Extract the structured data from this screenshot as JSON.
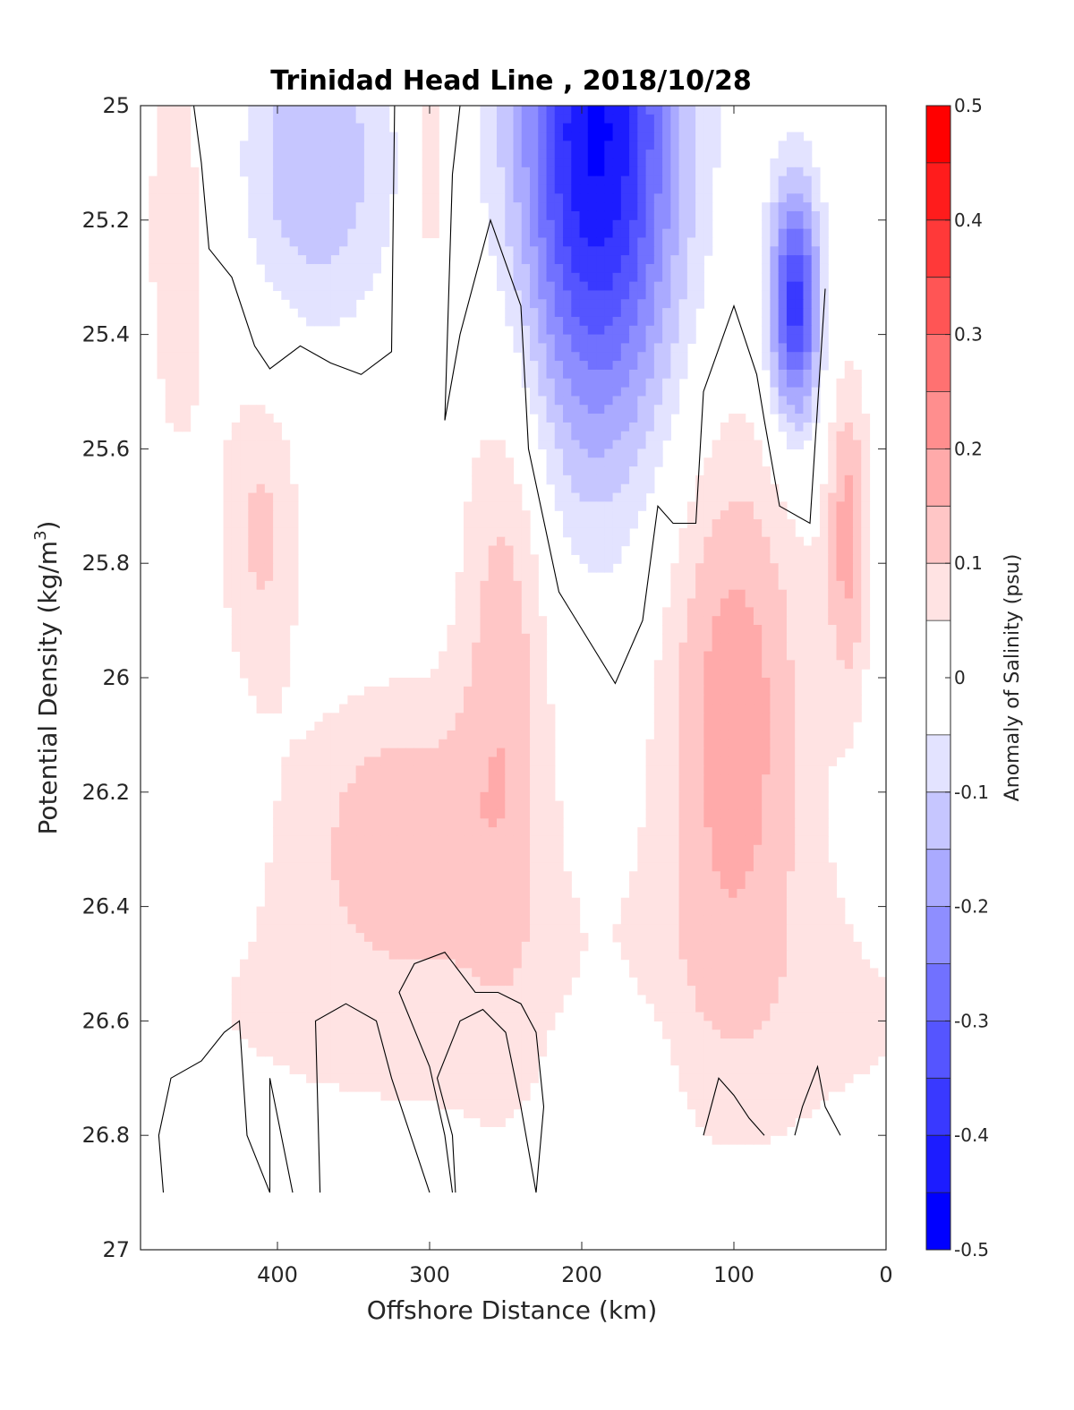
{
  "chart_data": {
    "type": "heatmap",
    "title": "Trinidad Head Line , 2018/10/28",
    "xlabel": "Offshore Distance (km)",
    "ylabel": "Potential Density (kg/m",
    "ylabel_sup": "3",
    "ylabel_close": ")",
    "colorbar_label": "Anomaly of Salinity (psu)",
    "xlim": [
      490,
      0
    ],
    "ylim": [
      25,
      27
    ],
    "y_reversed": true,
    "x_ticks": [
      {
        "value": 400,
        "label": "400"
      },
      {
        "value": 300,
        "label": "300"
      },
      {
        "value": 200,
        "label": "200"
      },
      {
        "value": 100,
        "label": "100"
      },
      {
        "value": 0,
        "label": "0"
      }
    ],
    "y_ticks": [
      {
        "value": 25,
        "label": "25"
      },
      {
        "value": 25.2,
        "label": "25.2"
      },
      {
        "value": 25.4,
        "label": "25.4"
      },
      {
        "value": 25.6,
        "label": "25.6"
      },
      {
        "value": 25.8,
        "label": "25.8"
      },
      {
        "value": 26,
        "label": "26"
      },
      {
        "value": 26.2,
        "label": "26.2"
      },
      {
        "value": 26.4,
        "label": "26.4"
      },
      {
        "value": 26.6,
        "label": "26.6"
      },
      {
        "value": 26.8,
        "label": "26.8"
      },
      {
        "value": 27,
        "label": "27"
      }
    ],
    "colorbar": {
      "range": [
        -0.5,
        0.5
      ],
      "ticks": [
        {
          "value": 0.5,
          "label": "0.5"
        },
        {
          "value": 0.4,
          "label": "0.4"
        },
        {
          "value": 0.3,
          "label": "0.3"
        },
        {
          "value": 0.2,
          "label": "0.2"
        },
        {
          "value": 0.1,
          "label": "0.1"
        },
        {
          "value": 0,
          "label": "0"
        },
        {
          "value": -0.1,
          "label": "-0.1"
        },
        {
          "value": -0.2,
          "label": "-0.2"
        },
        {
          "value": -0.3,
          "label": "-0.3"
        },
        {
          "value": -0.4,
          "label": "-0.4"
        },
        {
          "value": -0.5,
          "label": "-0.5"
        }
      ],
      "levels": [
        {
          "from": 0.45,
          "to": 0.5,
          "color": "#ff0000"
        },
        {
          "from": 0.4,
          "to": 0.45,
          "color": "#ff1c1c"
        },
        {
          "from": 0.35,
          "to": 0.4,
          "color": "#ff3939"
        },
        {
          "from": 0.3,
          "to": 0.35,
          "color": "#ff5555"
        },
        {
          "from": 0.25,
          "to": 0.3,
          "color": "#ff7171"
        },
        {
          "from": 0.2,
          "to": 0.25,
          "color": "#ff8e8e"
        },
        {
          "from": 0.15,
          "to": 0.2,
          "color": "#ffaaaa"
        },
        {
          "from": 0.1,
          "to": 0.15,
          "color": "#ffc6c6"
        },
        {
          "from": 0.05,
          "to": 0.1,
          "color": "#ffe3e3"
        },
        {
          "from": -0.05,
          "to": 0.05,
          "color": "#ffffff"
        },
        {
          "from": -0.1,
          "to": -0.05,
          "color": "#e3e3ff"
        },
        {
          "from": -0.15,
          "to": -0.1,
          "color": "#c6c6ff"
        },
        {
          "from": -0.2,
          "to": -0.15,
          "color": "#aaaaff"
        },
        {
          "from": -0.25,
          "to": -0.2,
          "color": "#8e8eff"
        },
        {
          "from": -0.3,
          "to": -0.25,
          "color": "#7171ff"
        },
        {
          "from": -0.35,
          "to": -0.3,
          "color": "#5555ff"
        },
        {
          "from": -0.4,
          "to": -0.35,
          "color": "#3939ff"
        },
        {
          "from": -0.45,
          "to": -0.4,
          "color": "#1c1cff"
        },
        {
          "from": -0.5,
          "to": -0.45,
          "color": "#0000ff"
        }
      ]
    },
    "field": [
      {
        "x": 465,
        "y": 25.2,
        "amp": 0.07,
        "sx": 22,
        "sy": 0.45
      },
      {
        "x": 410,
        "y": 25.75,
        "amp": 0.11,
        "sx": 18,
        "sy": 0.2
      },
      {
        "x": 320,
        "y": 26.25,
        "amp": 0.12,
        "sx": 50,
        "sy": 0.18
      },
      {
        "x": 250,
        "y": 25.9,
        "amp": 0.13,
        "sx": 22,
        "sy": 0.38
      },
      {
        "x": 100,
        "y": 26.05,
        "amp": 0.18,
        "sx": 35,
        "sy": 0.35
      },
      {
        "x": 25,
        "y": 25.75,
        "amp": 0.16,
        "sx": 10,
        "sy": 0.2
      },
      {
        "x": 300,
        "y": 25.1,
        "amp": 0.1,
        "sx": 8,
        "sy": 0.15
      },
      {
        "x": 200,
        "y": 26.6,
        "amp": 0.06,
        "sx": 350,
        "sy": 0.22
      },
      {
        "x": 375,
        "y": 25.1,
        "amp": -0.15,
        "sx": 35,
        "sy": 0.2
      },
      {
        "x": 190,
        "y": 25.05,
        "amp": -0.46,
        "sx": 38,
        "sy": 0.38
      },
      {
        "x": 60,
        "y": 25.35,
        "amp": -0.38,
        "sx": 12,
        "sy": 0.15
      },
      {
        "x": 180,
        "y": 26.72,
        "amp": -0.08,
        "sx": 28,
        "sy": 0.12
      }
    ],
    "zero_contours": [
      [
        [
          455,
          25
        ],
        [
          450,
          25.1
        ],
        [
          445,
          25.25
        ],
        [
          430,
          25.3
        ],
        [
          415,
          25.42
        ],
        [
          405,
          25.46
        ],
        [
          385,
          25.42
        ],
        [
          365,
          25.45
        ],
        [
          345,
          25.47
        ],
        [
          325,
          25.43
        ],
        [
          323,
          25
        ]
      ],
      [
        [
          280,
          25
        ],
        [
          285,
          25.12
        ],
        [
          290,
          25.55
        ],
        [
          280,
          25.4
        ],
        [
          260,
          25.2
        ],
        [
          240,
          25.35
        ],
        [
          235,
          25.6
        ],
        [
          215,
          25.85
        ],
        [
          178,
          26.01
        ],
        [
          160,
          25.9
        ],
        [
          150,
          25.7
        ],
        [
          140,
          25.73
        ],
        [
          125,
          25.73
        ],
        [
          120,
          25.5
        ],
        [
          100,
          25.35
        ],
        [
          85,
          25.47
        ],
        [
          80,
          25.55
        ],
        [
          70,
          25.7
        ],
        [
          50,
          25.73
        ],
        [
          40,
          25.32
        ]
      ],
      [
        [
          475,
          26.9
        ],
        [
          478,
          26.8
        ],
        [
          470,
          26.7
        ],
        [
          450,
          26.67
        ],
        [
          435,
          26.62
        ],
        [
          425,
          26.6
        ],
        [
          420,
          26.8
        ],
        [
          405,
          26.9
        ],
        [
          405,
          26.7
        ],
        [
          390,
          26.9
        ]
      ],
      [
        [
          372,
          26.9
        ],
        [
          373,
          26.8
        ],
        [
          375,
          26.6
        ],
        [
          355,
          26.57
        ],
        [
          335,
          26.6
        ],
        [
          325,
          26.7
        ],
        [
          300,
          26.9
        ]
      ],
      [
        [
          283,
          26.9
        ],
        [
          285,
          26.8
        ],
        [
          295,
          26.7
        ],
        [
          280,
          26.6
        ],
        [
          265,
          26.58
        ],
        [
          250,
          26.62
        ],
        [
          240,
          26.75
        ],
        [
          230,
          26.9
        ],
        [
          225,
          26.75
        ],
        [
          230,
          26.62
        ],
        [
          240,
          26.57
        ],
        [
          255,
          26.55
        ],
        [
          270,
          26.55
        ],
        [
          290,
          26.48
        ],
        [
          310,
          26.5
        ],
        [
          320,
          26.55
        ],
        [
          300,
          26.68
        ],
        [
          290,
          26.8
        ],
        [
          285,
          26.9
        ]
      ],
      [
        [
          120,
          26.8
        ],
        [
          110,
          26.7
        ],
        [
          100,
          26.73
        ],
        [
          90,
          26.77
        ],
        [
          80,
          26.8
        ]
      ],
      [
        [
          60,
          26.8
        ],
        [
          55,
          26.75
        ],
        [
          45,
          26.68
        ],
        [
          40,
          26.75
        ],
        [
          30,
          26.8
        ]
      ]
    ]
  }
}
